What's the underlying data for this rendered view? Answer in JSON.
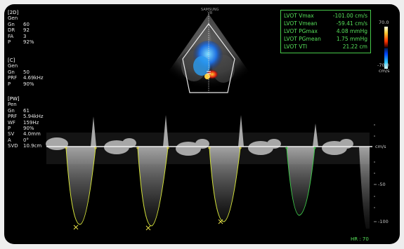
{
  "brand": {
    "line1": "SAMSUNG",
    "line2": "V8"
  },
  "settings_2d": {
    "header": "[2D]",
    "preset": "Gen",
    "rows": [
      [
        "Gn",
        "60"
      ],
      [
        "DR",
        "92"
      ],
      [
        "FA",
        "3"
      ],
      [
        "P",
        "92%"
      ]
    ]
  },
  "settings_color": {
    "header": "[C]",
    "preset": "Gen",
    "rows": [
      [
        "Gn",
        "50"
      ],
      [
        "PRF",
        "4.69kHz"
      ],
      [
        "P",
        "90%"
      ]
    ]
  },
  "settings_pw": {
    "header": "[PW]",
    "preset": "Pen",
    "rows": [
      [
        "Gn",
        "61"
      ],
      [
        "PRF",
        "5.94kHz"
      ],
      [
        "WF",
        "159Hz"
      ],
      [
        "P",
        "90%"
      ],
      [
        "SV",
        "4.0mm"
      ],
      [
        "A",
        "0°"
      ],
      [
        "SVD",
        "10.9cm"
      ]
    ]
  },
  "measurements": [
    {
      "label": "LVOT Vmax",
      "value": "-101.00  cm/s"
    },
    {
      "label": "LVOT Vmean",
      "value": "-59.41  cm/s"
    },
    {
      "label": "LVOT PGmax",
      "value": "4.08  mmHg"
    },
    {
      "label": "LVOT PGmean",
      "value": "1.75  mmHg"
    },
    {
      "label": "LVOT VTI",
      "value": "21.22  cm"
    }
  ],
  "color_scale": {
    "top": "70.0",
    "bottom": "-70.0",
    "unit": "cm/s"
  },
  "doppler_scale": {
    "unit": "cm/s",
    "ticks": [
      "-50",
      "-100"
    ]
  },
  "heart_rate": "HR : 70",
  "colors": {
    "measure_text": "#56e05a",
    "trace": "#d4e23a",
    "background": "#000000"
  }
}
